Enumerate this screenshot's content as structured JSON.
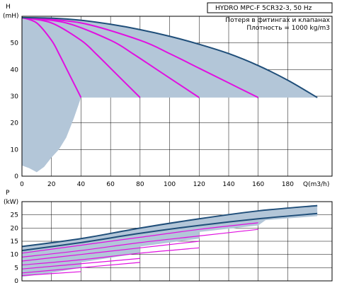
{
  "chart_data": [
    {
      "type": "line",
      "name": "head-chart",
      "title": "HYDRO MPC-F 5CR32-3, 50 Hz",
      "notes": [
        "Потеря в фитингах и клапанах",
        "Плотность = 1000 kg/m3"
      ],
      "ylabel": "H",
      "yunit": "(mH)",
      "xlabel": "Q(m3/h)",
      "xlim": [
        0,
        210
      ],
      "ylim": [
        0,
        60
      ],
      "xticks": [
        0,
        20,
        40,
        60,
        80,
        100,
        120,
        140,
        160,
        180
      ],
      "yticks": [
        0,
        10,
        20,
        30,
        40,
        50
      ],
      "grid": true,
      "colors": {
        "max_curve": "#1f4e79",
        "speed_curves": "#e010e0",
        "area": "#b3c6d8"
      },
      "series": [
        {
          "pumps": 1,
          "x": [
            0,
            10,
            20,
            25,
            30,
            35,
            40
          ],
          "y": [
            59.5,
            57.5,
            51,
            46,
            40.5,
            35,
            29.5
          ]
        },
        {
          "pumps": 2,
          "x": [
            0,
            20,
            40,
            50,
            60,
            70,
            80
          ],
          "y": [
            59.5,
            57.5,
            51,
            46,
            40.5,
            35,
            29.5
          ]
        },
        {
          "pumps": 3,
          "x": [
            0,
            30,
            60,
            75,
            90,
            105,
            120
          ],
          "y": [
            59.5,
            57.5,
            51,
            46,
            40.5,
            35,
            29.5
          ]
        },
        {
          "pumps": 4,
          "x": [
            0,
            40,
            80,
            100,
            120,
            140,
            160
          ],
          "y": [
            59.5,
            57.5,
            51,
            46,
            40.5,
            35,
            29.5
          ]
        },
        {
          "pumps": 5,
          "x": [
            0,
            20,
            40,
            60,
            80,
            100,
            120,
            140,
            160,
            180,
            200
          ],
          "y": [
            59.5,
            59.3,
            58.5,
            57,
            55,
            52.5,
            49.5,
            46,
            41.5,
            36,
            29.5
          ]
        }
      ],
      "area_lower_boundary": {
        "x": [
          0,
          5,
          10,
          15,
          20,
          25,
          30,
          35,
          40
        ],
        "y": [
          4,
          3,
          1.5,
          3.5,
          7,
          10,
          14.5,
          21.5,
          29.5
        ]
      }
    },
    {
      "type": "line",
      "name": "power-chart",
      "ylabel": "P",
      "yunit": "(kW)",
      "xlim": [
        0,
        210
      ],
      "ylim": [
        0,
        30
      ],
      "yticks": [
        0,
        5,
        10,
        15,
        20,
        25
      ],
      "grid": true,
      "series": [
        {
          "kind": "max",
          "x": [
            0,
            40,
            80,
            120,
            160,
            200
          ],
          "y": [
            13,
            16,
            20,
            23.5,
            26.5,
            28.5
          ]
        },
        {
          "kind": "max",
          "x": [
            0,
            40,
            80,
            120,
            160,
            200
          ],
          "y": [
            11.5,
            14.5,
            18,
            21,
            23.5,
            25.5
          ]
        },
        {
          "kind": "speed",
          "x": [
            0,
            40,
            80,
            120,
            160
          ],
          "y": [
            10.5,
            13.5,
            16.5,
            19.5,
            22
          ]
        },
        {
          "kind": "speed",
          "x": [
            0,
            40,
            80,
            120,
            160
          ],
          "y": [
            9,
            11.5,
            14.5,
            17,
            19.5
          ]
        },
        {
          "kind": "speed",
          "x": [
            0,
            40,
            80,
            120
          ],
          "y": [
            7.5,
            10,
            12.5,
            15
          ]
        },
        {
          "kind": "speed",
          "x": [
            0,
            40,
            80,
            120
          ],
          "y": [
            6,
            8,
            10.5,
            12.5
          ]
        },
        {
          "kind": "speed",
          "x": [
            0,
            40,
            80
          ],
          "y": [
            4.5,
            6.5,
            8.5
          ]
        },
        {
          "kind": "speed",
          "x": [
            0,
            40,
            80
          ],
          "y": [
            3,
            5,
            7
          ]
        },
        {
          "kind": "speed",
          "x": [
            0,
            40
          ],
          "y": [
            2,
            3.5
          ]
        }
      ]
    }
  ]
}
